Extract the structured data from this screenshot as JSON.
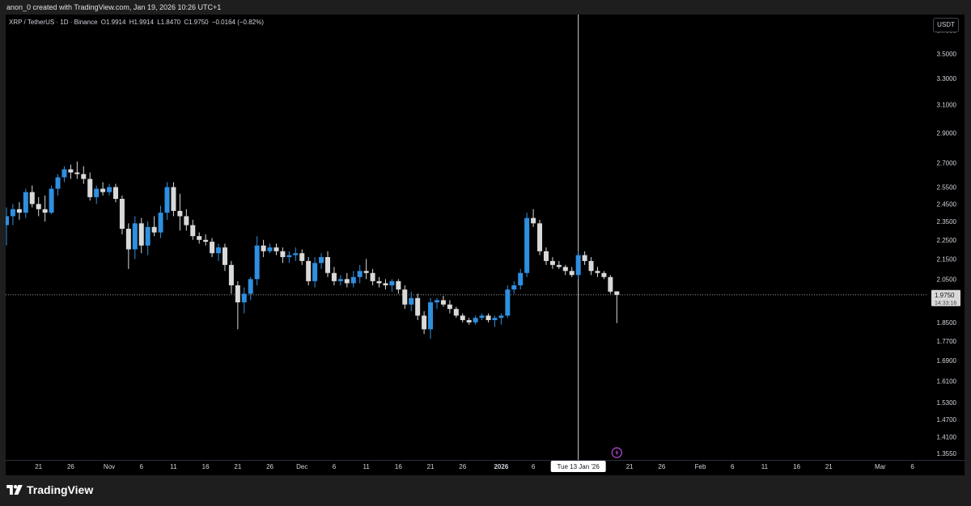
{
  "caption": "anon_0 created with TradingView.com, Jan 19, 2026 10:26 UTC+1",
  "legend": {
    "symbol": "XRP / TetherUS · 1D · Binance",
    "open": "O1.9914",
    "high": "H1.9914",
    "low": "L1.8470",
    "close": "C1.9750",
    "change": "−0.0164 (−0.82%)"
  },
  "currency_label": "USDT",
  "current_price_label": "1.9750",
  "countdown_label": "14:33:16",
  "crosshair_date_label": "Tue 13 Jan '26",
  "brand": "TradingView",
  "colors": {
    "up": "#2f8fe0",
    "down": "#d9d9d9",
    "background": "#000000",
    "axis_text": "#d1d4dc",
    "crosshair": "#cfcfcf"
  },
  "icons": [
    "lightning-event-icon",
    "tradingview-logo-icon"
  ],
  "chart_data": {
    "type": "candlestick",
    "title": "XRP / TetherUS · 1D · Binance",
    "xlabel": "",
    "ylabel": "",
    "y_scale": "log",
    "ylim": [
      1.335,
      3.84
    ],
    "y_ticks": [
      3.7,
      3.5,
      3.3,
      3.1,
      2.9,
      2.7,
      2.55,
      2.45,
      2.35,
      2.25,
      2.15,
      2.05,
      1.85,
      1.77,
      1.69,
      1.61,
      1.53,
      1.47,
      1.41,
      1.355
    ],
    "x_ticks": [
      {
        "label": "21",
        "date": "2025-10-21"
      },
      {
        "label": "26",
        "date": "2025-10-26"
      },
      {
        "label": "Nov",
        "date": "2025-11-01"
      },
      {
        "label": "6",
        "date": "2025-11-06"
      },
      {
        "label": "11",
        "date": "2025-11-11"
      },
      {
        "label": "16",
        "date": "2025-11-16"
      },
      {
        "label": "21",
        "date": "2025-11-21"
      },
      {
        "label": "26",
        "date": "2025-11-26"
      },
      {
        "label": "Dec",
        "date": "2025-12-01"
      },
      {
        "label": "6",
        "date": "2025-12-06"
      },
      {
        "label": "11",
        "date": "2025-12-11"
      },
      {
        "label": "16",
        "date": "2025-12-16"
      },
      {
        "label": "21",
        "date": "2025-12-21"
      },
      {
        "label": "26",
        "date": "2025-12-26"
      },
      {
        "label": "2026",
        "date": "2026-01-01"
      },
      {
        "label": "6",
        "date": "2026-01-06"
      },
      {
        "label": "21",
        "date": "2026-01-21"
      },
      {
        "label": "26",
        "date": "2026-01-26"
      },
      {
        "label": "Feb",
        "date": "2026-02-01"
      },
      {
        "label": "6",
        "date": "2026-02-06"
      },
      {
        "label": "11",
        "date": "2026-02-11"
      },
      {
        "label": "16",
        "date": "2026-02-16"
      },
      {
        "label": "21",
        "date": "2026-02-21"
      },
      {
        "label": "Mar",
        "date": "2026-03-01"
      },
      {
        "label": "6",
        "date": "2026-03-06"
      }
    ],
    "current_price": 1.975,
    "crosshair_date": "2026-01-13",
    "event_marker_date": "2026-01-19",
    "series": [
      {
        "date": "2025-10-16",
        "o": 2.33,
        "h": 2.43,
        "l": 2.22,
        "c": 2.38
      },
      {
        "date": "2025-10-17",
        "o": 2.38,
        "h": 2.45,
        "l": 2.33,
        "c": 2.42
      },
      {
        "date": "2025-10-18",
        "o": 2.42,
        "h": 2.46,
        "l": 2.36,
        "c": 2.4
      },
      {
        "date": "2025-10-19",
        "o": 2.4,
        "h": 2.54,
        "l": 2.37,
        "c": 2.52
      },
      {
        "date": "2025-10-20",
        "o": 2.52,
        "h": 2.56,
        "l": 2.43,
        "c": 2.45
      },
      {
        "date": "2025-10-21",
        "o": 2.45,
        "h": 2.49,
        "l": 2.38,
        "c": 2.42
      },
      {
        "date": "2025-10-22",
        "o": 2.42,
        "h": 2.5,
        "l": 2.35,
        "c": 2.4
      },
      {
        "date": "2025-10-23",
        "o": 2.4,
        "h": 2.56,
        "l": 2.39,
        "c": 2.54
      },
      {
        "date": "2025-10-24",
        "o": 2.54,
        "h": 2.63,
        "l": 2.5,
        "c": 2.61
      },
      {
        "date": "2025-10-25",
        "o": 2.61,
        "h": 2.68,
        "l": 2.58,
        "c": 2.66
      },
      {
        "date": "2025-10-26",
        "o": 2.66,
        "h": 2.69,
        "l": 2.6,
        "c": 2.64
      },
      {
        "date": "2025-10-27",
        "o": 2.64,
        "h": 2.71,
        "l": 2.6,
        "c": 2.63
      },
      {
        "date": "2025-10-28",
        "o": 2.63,
        "h": 2.68,
        "l": 2.57,
        "c": 2.6
      },
      {
        "date": "2025-10-29",
        "o": 2.6,
        "h": 2.64,
        "l": 2.47,
        "c": 2.49
      },
      {
        "date": "2025-10-30",
        "o": 2.49,
        "h": 2.56,
        "l": 2.45,
        "c": 2.54
      },
      {
        "date": "2025-10-31",
        "o": 2.54,
        "h": 2.58,
        "l": 2.5,
        "c": 2.52
      },
      {
        "date": "2025-11-01",
        "o": 2.52,
        "h": 2.57,
        "l": 2.5,
        "c": 2.55
      },
      {
        "date": "2025-11-02",
        "o": 2.55,
        "h": 2.57,
        "l": 2.46,
        "c": 2.48
      },
      {
        "date": "2025-11-03",
        "o": 2.48,
        "h": 2.5,
        "l": 2.28,
        "c": 2.31
      },
      {
        "date": "2025-11-04",
        "o": 2.31,
        "h": 2.34,
        "l": 2.1,
        "c": 2.2
      },
      {
        "date": "2025-11-05",
        "o": 2.2,
        "h": 2.38,
        "l": 2.15,
        "c": 2.34
      },
      {
        "date": "2025-11-06",
        "o": 2.34,
        "h": 2.37,
        "l": 2.18,
        "c": 2.22
      },
      {
        "date": "2025-11-07",
        "o": 2.22,
        "h": 2.35,
        "l": 2.17,
        "c": 2.32
      },
      {
        "date": "2025-11-08",
        "o": 2.32,
        "h": 2.38,
        "l": 2.27,
        "c": 2.29
      },
      {
        "date": "2025-11-09",
        "o": 2.29,
        "h": 2.44,
        "l": 2.26,
        "c": 2.4
      },
      {
        "date": "2025-11-10",
        "o": 2.4,
        "h": 2.58,
        "l": 2.36,
        "c": 2.55
      },
      {
        "date": "2025-11-11",
        "o": 2.55,
        "h": 2.58,
        "l": 2.38,
        "c": 2.41
      },
      {
        "date": "2025-11-12",
        "o": 2.41,
        "h": 2.51,
        "l": 2.3,
        "c": 2.38
      },
      {
        "date": "2025-11-13",
        "o": 2.38,
        "h": 2.42,
        "l": 2.3,
        "c": 2.33
      },
      {
        "date": "2025-11-14",
        "o": 2.33,
        "h": 2.36,
        "l": 2.25,
        "c": 2.27
      },
      {
        "date": "2025-11-15",
        "o": 2.27,
        "h": 2.29,
        "l": 2.23,
        "c": 2.25
      },
      {
        "date": "2025-11-16",
        "o": 2.25,
        "h": 2.28,
        "l": 2.22,
        "c": 2.24
      },
      {
        "date": "2025-11-17",
        "o": 2.24,
        "h": 2.26,
        "l": 2.16,
        "c": 2.18
      },
      {
        "date": "2025-11-18",
        "o": 2.18,
        "h": 2.23,
        "l": 2.14,
        "c": 2.21
      },
      {
        "date": "2025-11-19",
        "o": 2.21,
        "h": 2.23,
        "l": 2.09,
        "c": 2.12
      },
      {
        "date": "2025-11-20",
        "o": 2.12,
        "h": 2.14,
        "l": 1.98,
        "c": 2.02
      },
      {
        "date": "2025-11-21",
        "o": 2.02,
        "h": 2.04,
        "l": 1.82,
        "c": 1.94
      },
      {
        "date": "2025-11-22",
        "o": 1.94,
        "h": 2.01,
        "l": 1.89,
        "c": 1.98
      },
      {
        "date": "2025-11-23",
        "o": 1.98,
        "h": 2.06,
        "l": 1.95,
        "c": 2.05
      },
      {
        "date": "2025-11-24",
        "o": 2.05,
        "h": 2.27,
        "l": 2.02,
        "c": 2.22
      },
      {
        "date": "2025-11-25",
        "o": 2.22,
        "h": 2.25,
        "l": 2.16,
        "c": 2.19
      },
      {
        "date": "2025-11-26",
        "o": 2.19,
        "h": 2.23,
        "l": 2.18,
        "c": 2.21
      },
      {
        "date": "2025-11-27",
        "o": 2.21,
        "h": 2.23,
        "l": 2.17,
        "c": 2.19
      },
      {
        "date": "2025-11-28",
        "o": 2.19,
        "h": 2.21,
        "l": 2.13,
        "c": 2.16
      },
      {
        "date": "2025-11-29",
        "o": 2.16,
        "h": 2.19,
        "l": 2.13,
        "c": 2.17
      },
      {
        "date": "2025-11-30",
        "o": 2.17,
        "h": 2.21,
        "l": 2.14,
        "c": 2.18
      },
      {
        "date": "2025-12-01",
        "o": 2.18,
        "h": 2.2,
        "l": 2.12,
        "c": 2.14
      },
      {
        "date": "2025-12-02",
        "o": 2.14,
        "h": 2.16,
        "l": 2.02,
        "c": 2.04
      },
      {
        "date": "2025-12-03",
        "o": 2.04,
        "h": 2.16,
        "l": 2.01,
        "c": 2.13
      },
      {
        "date": "2025-12-04",
        "o": 2.13,
        "h": 2.18,
        "l": 2.1,
        "c": 2.16
      },
      {
        "date": "2025-12-05",
        "o": 2.16,
        "h": 2.19,
        "l": 2.06,
        "c": 2.08
      },
      {
        "date": "2025-12-06",
        "o": 2.08,
        "h": 2.11,
        "l": 2.02,
        "c": 2.04
      },
      {
        "date": "2025-12-07",
        "o": 2.04,
        "h": 2.07,
        "l": 2.02,
        "c": 2.05
      },
      {
        "date": "2025-12-08",
        "o": 2.05,
        "h": 2.08,
        "l": 2.01,
        "c": 2.03
      },
      {
        "date": "2025-12-09",
        "o": 2.03,
        "h": 2.09,
        "l": 2.01,
        "c": 2.06
      },
      {
        "date": "2025-12-10",
        "o": 2.06,
        "h": 2.12,
        "l": 2.03,
        "c": 2.09
      },
      {
        "date": "2025-12-11",
        "o": 2.09,
        "h": 2.15,
        "l": 2.05,
        "c": 2.08
      },
      {
        "date": "2025-12-12",
        "o": 2.08,
        "h": 2.1,
        "l": 2.02,
        "c": 2.04
      },
      {
        "date": "2025-12-13",
        "o": 2.04,
        "h": 2.06,
        "l": 2.01,
        "c": 2.03
      },
      {
        "date": "2025-12-14",
        "o": 2.03,
        "h": 2.05,
        "l": 2.0,
        "c": 2.02
      },
      {
        "date": "2025-12-15",
        "o": 2.02,
        "h": 2.05,
        "l": 1.99,
        "c": 2.04
      },
      {
        "date": "2025-12-16",
        "o": 2.04,
        "h": 2.05,
        "l": 1.98,
        "c": 2.0
      },
      {
        "date": "2025-12-17",
        "o": 2.0,
        "h": 2.02,
        "l": 1.91,
        "c": 1.93
      },
      {
        "date": "2025-12-18",
        "o": 1.93,
        "h": 1.99,
        "l": 1.9,
        "c": 1.96
      },
      {
        "date": "2025-12-19",
        "o": 1.96,
        "h": 1.98,
        "l": 1.86,
        "c": 1.88
      },
      {
        "date": "2025-12-20",
        "o": 1.88,
        "h": 1.9,
        "l": 1.8,
        "c": 1.82
      },
      {
        "date": "2025-12-21",
        "o": 1.82,
        "h": 1.96,
        "l": 1.78,
        "c": 1.94
      },
      {
        "date": "2025-12-22",
        "o": 1.94,
        "h": 1.96,
        "l": 1.91,
        "c": 1.95
      },
      {
        "date": "2025-12-23",
        "o": 1.95,
        "h": 1.97,
        "l": 1.92,
        "c": 1.93
      },
      {
        "date": "2025-12-24",
        "o": 1.93,
        "h": 1.95,
        "l": 1.89,
        "c": 1.91
      },
      {
        "date": "2025-12-25",
        "o": 1.91,
        "h": 1.92,
        "l": 1.87,
        "c": 1.88
      },
      {
        "date": "2025-12-26",
        "o": 1.88,
        "h": 1.89,
        "l": 1.85,
        "c": 1.86
      },
      {
        "date": "2025-12-27",
        "o": 1.86,
        "h": 1.87,
        "l": 1.84,
        "c": 1.85
      },
      {
        "date": "2025-12-28",
        "o": 1.85,
        "h": 1.88,
        "l": 1.84,
        "c": 1.87
      },
      {
        "date": "2025-12-29",
        "o": 1.87,
        "h": 1.89,
        "l": 1.86,
        "c": 1.88
      },
      {
        "date": "2025-12-30",
        "o": 1.88,
        "h": 1.89,
        "l": 1.85,
        "c": 1.86
      },
      {
        "date": "2025-12-31",
        "o": 1.86,
        "h": 1.88,
        "l": 1.83,
        "c": 1.87
      },
      {
        "date": "2026-01-01",
        "o": 1.87,
        "h": 1.89,
        "l": 1.84,
        "c": 1.88
      },
      {
        "date": "2026-01-02",
        "o": 1.88,
        "h": 2.02,
        "l": 1.87,
        "c": 2.0
      },
      {
        "date": "2026-01-03",
        "o": 2.0,
        "h": 2.04,
        "l": 1.98,
        "c": 2.02
      },
      {
        "date": "2026-01-04",
        "o": 2.02,
        "h": 2.1,
        "l": 2.0,
        "c": 2.08
      },
      {
        "date": "2026-01-05",
        "o": 2.08,
        "h": 2.4,
        "l": 2.06,
        "c": 2.37
      },
      {
        "date": "2026-01-06",
        "o": 2.37,
        "h": 2.42,
        "l": 2.32,
        "c": 2.34
      },
      {
        "date": "2026-01-07",
        "o": 2.34,
        "h": 2.36,
        "l": 2.17,
        "c": 2.19
      },
      {
        "date": "2026-01-08",
        "o": 2.19,
        "h": 2.21,
        "l": 2.12,
        "c": 2.14
      },
      {
        "date": "2026-01-09",
        "o": 2.14,
        "h": 2.16,
        "l": 2.1,
        "c": 2.12
      },
      {
        "date": "2026-01-10",
        "o": 2.12,
        "h": 2.14,
        "l": 2.1,
        "c": 2.11
      },
      {
        "date": "2026-01-11",
        "o": 2.11,
        "h": 2.12,
        "l": 2.07,
        "c": 2.09
      },
      {
        "date": "2026-01-12",
        "o": 2.09,
        "h": 2.11,
        "l": 2.06,
        "c": 2.07
      },
      {
        "date": "2026-01-13",
        "o": 2.07,
        "h": 2.19,
        "l": 2.05,
        "c": 2.17
      },
      {
        "date": "2026-01-14",
        "o": 2.17,
        "h": 2.19,
        "l": 2.12,
        "c": 2.14
      },
      {
        "date": "2026-01-15",
        "o": 2.14,
        "h": 2.16,
        "l": 2.07,
        "c": 2.09
      },
      {
        "date": "2026-01-16",
        "o": 2.09,
        "h": 2.11,
        "l": 2.06,
        "c": 2.08
      },
      {
        "date": "2026-01-17",
        "o": 2.08,
        "h": 2.09,
        "l": 2.05,
        "c": 2.06
      },
      {
        "date": "2026-01-18",
        "o": 2.06,
        "h": 2.07,
        "l": 1.98,
        "c": 1.99
      },
      {
        "date": "2026-01-19",
        "o": 1.9914,
        "h": 1.9914,
        "l": 1.847,
        "c": 1.975
      }
    ]
  }
}
